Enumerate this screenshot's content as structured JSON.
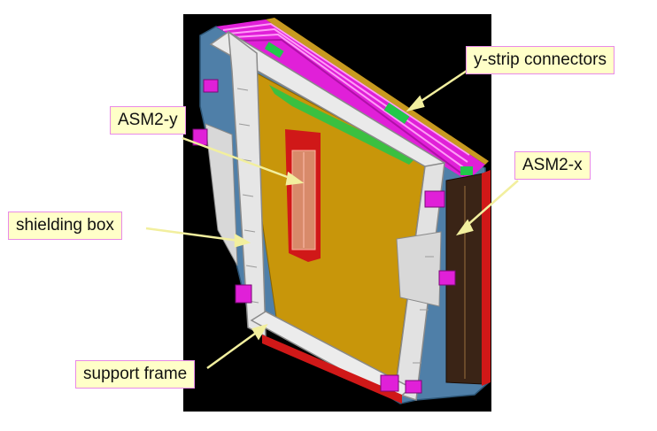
{
  "labels": {
    "y_strip_connectors": "y-strip connectors",
    "asm2_y": "ASM2-y",
    "asm2_x": "ASM2-x",
    "shielding_box": "shielding box",
    "support_frame": "support frame"
  },
  "colors": {
    "background": "#000000",
    "support_frame": "#e6e6e6",
    "shielding_box": "#4f7fa8",
    "detector_panel": "#c8960a",
    "cables": "#e020d8",
    "connectors": "#22c84a",
    "asm2_y_board": "#d88a6a",
    "asm2_x_board": "#3a2416",
    "highlight_red": "#d01818",
    "label_fill": "#ffffc8",
    "label_border": "#e88ae8",
    "callout_line": "#f2ef9e"
  }
}
